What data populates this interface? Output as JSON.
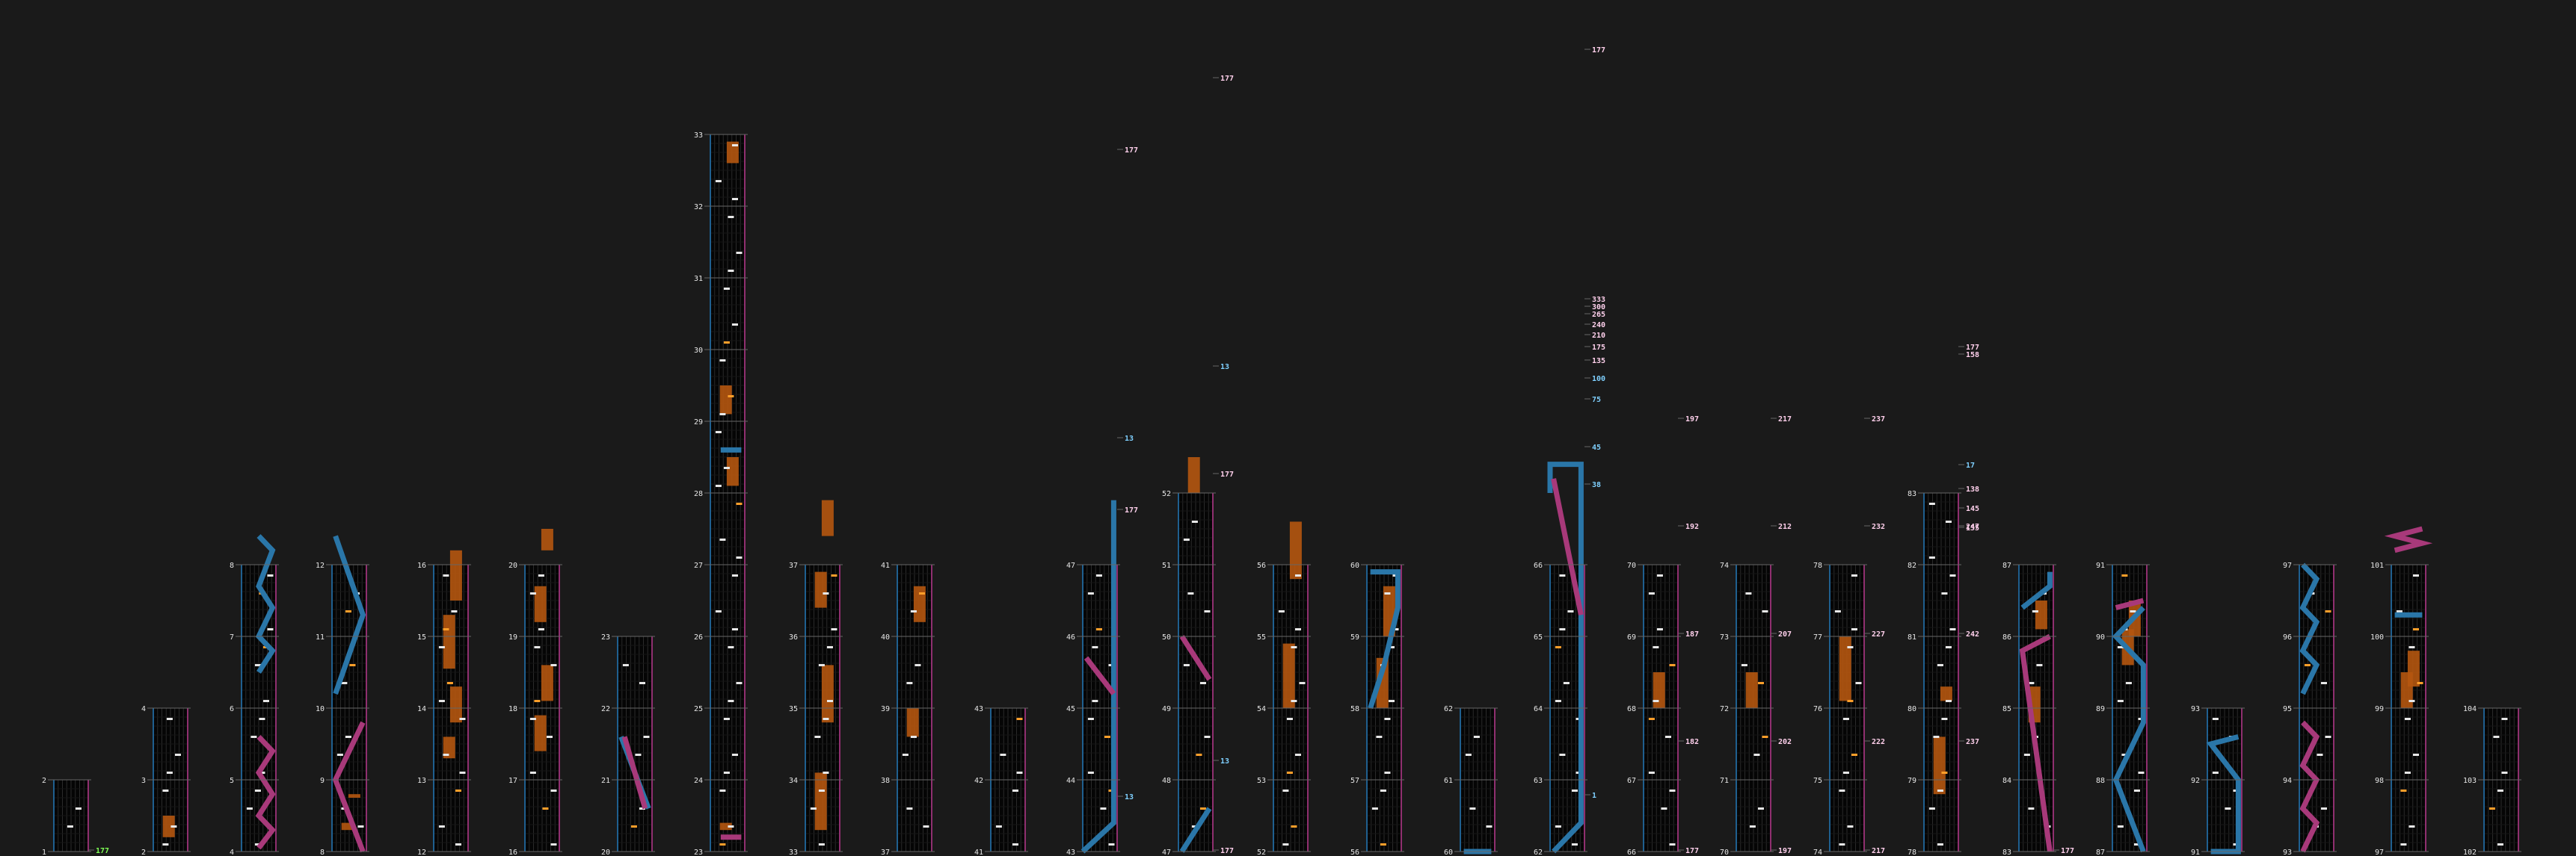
{
  "colors": {
    "background": "#1a1a1a",
    "column": "#050505",
    "grid": "#2a2a2a",
    "border_left": "#1f5f8f",
    "border_right": "#8f2f6f",
    "measure_line": "#666666",
    "note": "#e8e8e8",
    "orange_note": "#ff9f2a",
    "hold": "#b5560f",
    "blue_slide": "#2a76a8",
    "pink_slide": "#a8397a",
    "bpm_label": "#ffd0ec",
    "bpm_blue": "#7fd0ff",
    "bpm_green": "#7fff55"
  },
  "chart_data": {
    "type": "other",
    "columns": [
      {
        "id": "col-1",
        "measures": [
          "1",
          "2"
        ],
        "bpm": [
          "177"
        ]
      },
      {
        "id": "col-2",
        "measures": [
          "2",
          "3",
          "4"
        ],
        "bpm": []
      },
      {
        "id": "col-3",
        "measures": [
          "4",
          "5",
          "6",
          "7",
          "8"
        ],
        "bpm": []
      },
      {
        "id": "col-4",
        "measures": [
          "8",
          "9",
          "10",
          "11",
          "12"
        ],
        "bpm": []
      },
      {
        "id": "col-5",
        "measures": [
          "12",
          "13",
          "14",
          "15",
          "16"
        ],
        "bpm": []
      },
      {
        "id": "col-6",
        "measures": [
          "16",
          "17",
          "18",
          "19",
          "20"
        ],
        "bpm": []
      },
      {
        "id": "col-7",
        "measures": [
          "20",
          "21",
          "22",
          "23"
        ],
        "bpm": []
      },
      {
        "id": "col-8",
        "measures": [
          "23",
          "24",
          "25",
          "26",
          "27",
          "28",
          "29",
          "30",
          "31",
          "32",
          "33"
        ],
        "bpm": []
      },
      {
        "id": "col-9",
        "measures": [
          "33",
          "34",
          "35",
          "36",
          "37"
        ],
        "bpm": []
      },
      {
        "id": "col-10",
        "measures": [
          "37",
          "38",
          "39",
          "40",
          "41"
        ],
        "bpm": []
      },
      {
        "id": "col-11",
        "measures": [
          "41",
          "42",
          "43"
        ],
        "bpm": []
      },
      {
        "id": "col-12",
        "measures": [
          "43",
          "44",
          "45",
          "46",
          "47"
        ],
        "bpm": [
          "13",
          "177",
          "13",
          "177"
        ]
      },
      {
        "id": "col-13",
        "measures": [
          "47",
          "48",
          "49",
          "50",
          "51",
          "52"
        ],
        "bpm": [
          "177",
          "13",
          "177",
          "13",
          "177"
        ]
      },
      {
        "id": "col-14",
        "measures": [
          "52",
          "53",
          "54",
          "55",
          "56"
        ],
        "bpm": []
      },
      {
        "id": "col-15",
        "measures": [
          "56",
          "57",
          "58",
          "59",
          "60"
        ],
        "bpm": []
      },
      {
        "id": "col-16",
        "measures": [
          "60",
          "61",
          "62"
        ],
        "bpm": []
      },
      {
        "id": "col-17",
        "measures": [
          "62",
          "63",
          "64",
          "65",
          "66"
        ],
        "bpm": [
          "1",
          "38",
          "45",
          "75",
          "100",
          "135",
          "175",
          "210",
          "240",
          "265",
          "300",
          "333",
          "177"
        ]
      },
      {
        "id": "col-18",
        "measures": [
          "66",
          "67",
          "68",
          "69",
          "70"
        ],
        "bpm": [
          "177",
          "182",
          "187",
          "192",
          "197"
        ]
      },
      {
        "id": "col-19",
        "measures": [
          "70",
          "71",
          "72",
          "73",
          "74"
        ],
        "bpm": [
          "197",
          "202",
          "207",
          "212",
          "217"
        ]
      },
      {
        "id": "col-20",
        "measures": [
          "74",
          "75",
          "76",
          "77",
          "78"
        ],
        "bpm": [
          "217",
          "222",
          "227",
          "232",
          "237"
        ]
      },
      {
        "id": "col-21",
        "measures": [
          "78",
          "79",
          "80",
          "81",
          "82",
          "83"
        ],
        "bpm": [
          "237",
          "242",
          "247",
          "155",
          "145",
          "138",
          "17",
          "158",
          "177"
        ]
      },
      {
        "id": "col-22",
        "measures": [
          "83",
          "84",
          "85",
          "86",
          "87"
        ],
        "bpm": [
          "177"
        ]
      },
      {
        "id": "col-23",
        "measures": [
          "87",
          "88",
          "89",
          "90",
          "91"
        ],
        "bpm": []
      },
      {
        "id": "col-24",
        "measures": [
          "91",
          "92",
          "93"
        ],
        "bpm": []
      },
      {
        "id": "col-25",
        "measures": [
          "93",
          "94",
          "95",
          "96",
          "97"
        ],
        "bpm": []
      },
      {
        "id": "col-26",
        "measures": [
          "97",
          "98",
          "99",
          "100",
          "101"
        ],
        "bpm": []
      },
      {
        "id": "col-27",
        "measures": [
          "102",
          "103",
          "104"
        ],
        "bpm": []
      }
    ]
  }
}
